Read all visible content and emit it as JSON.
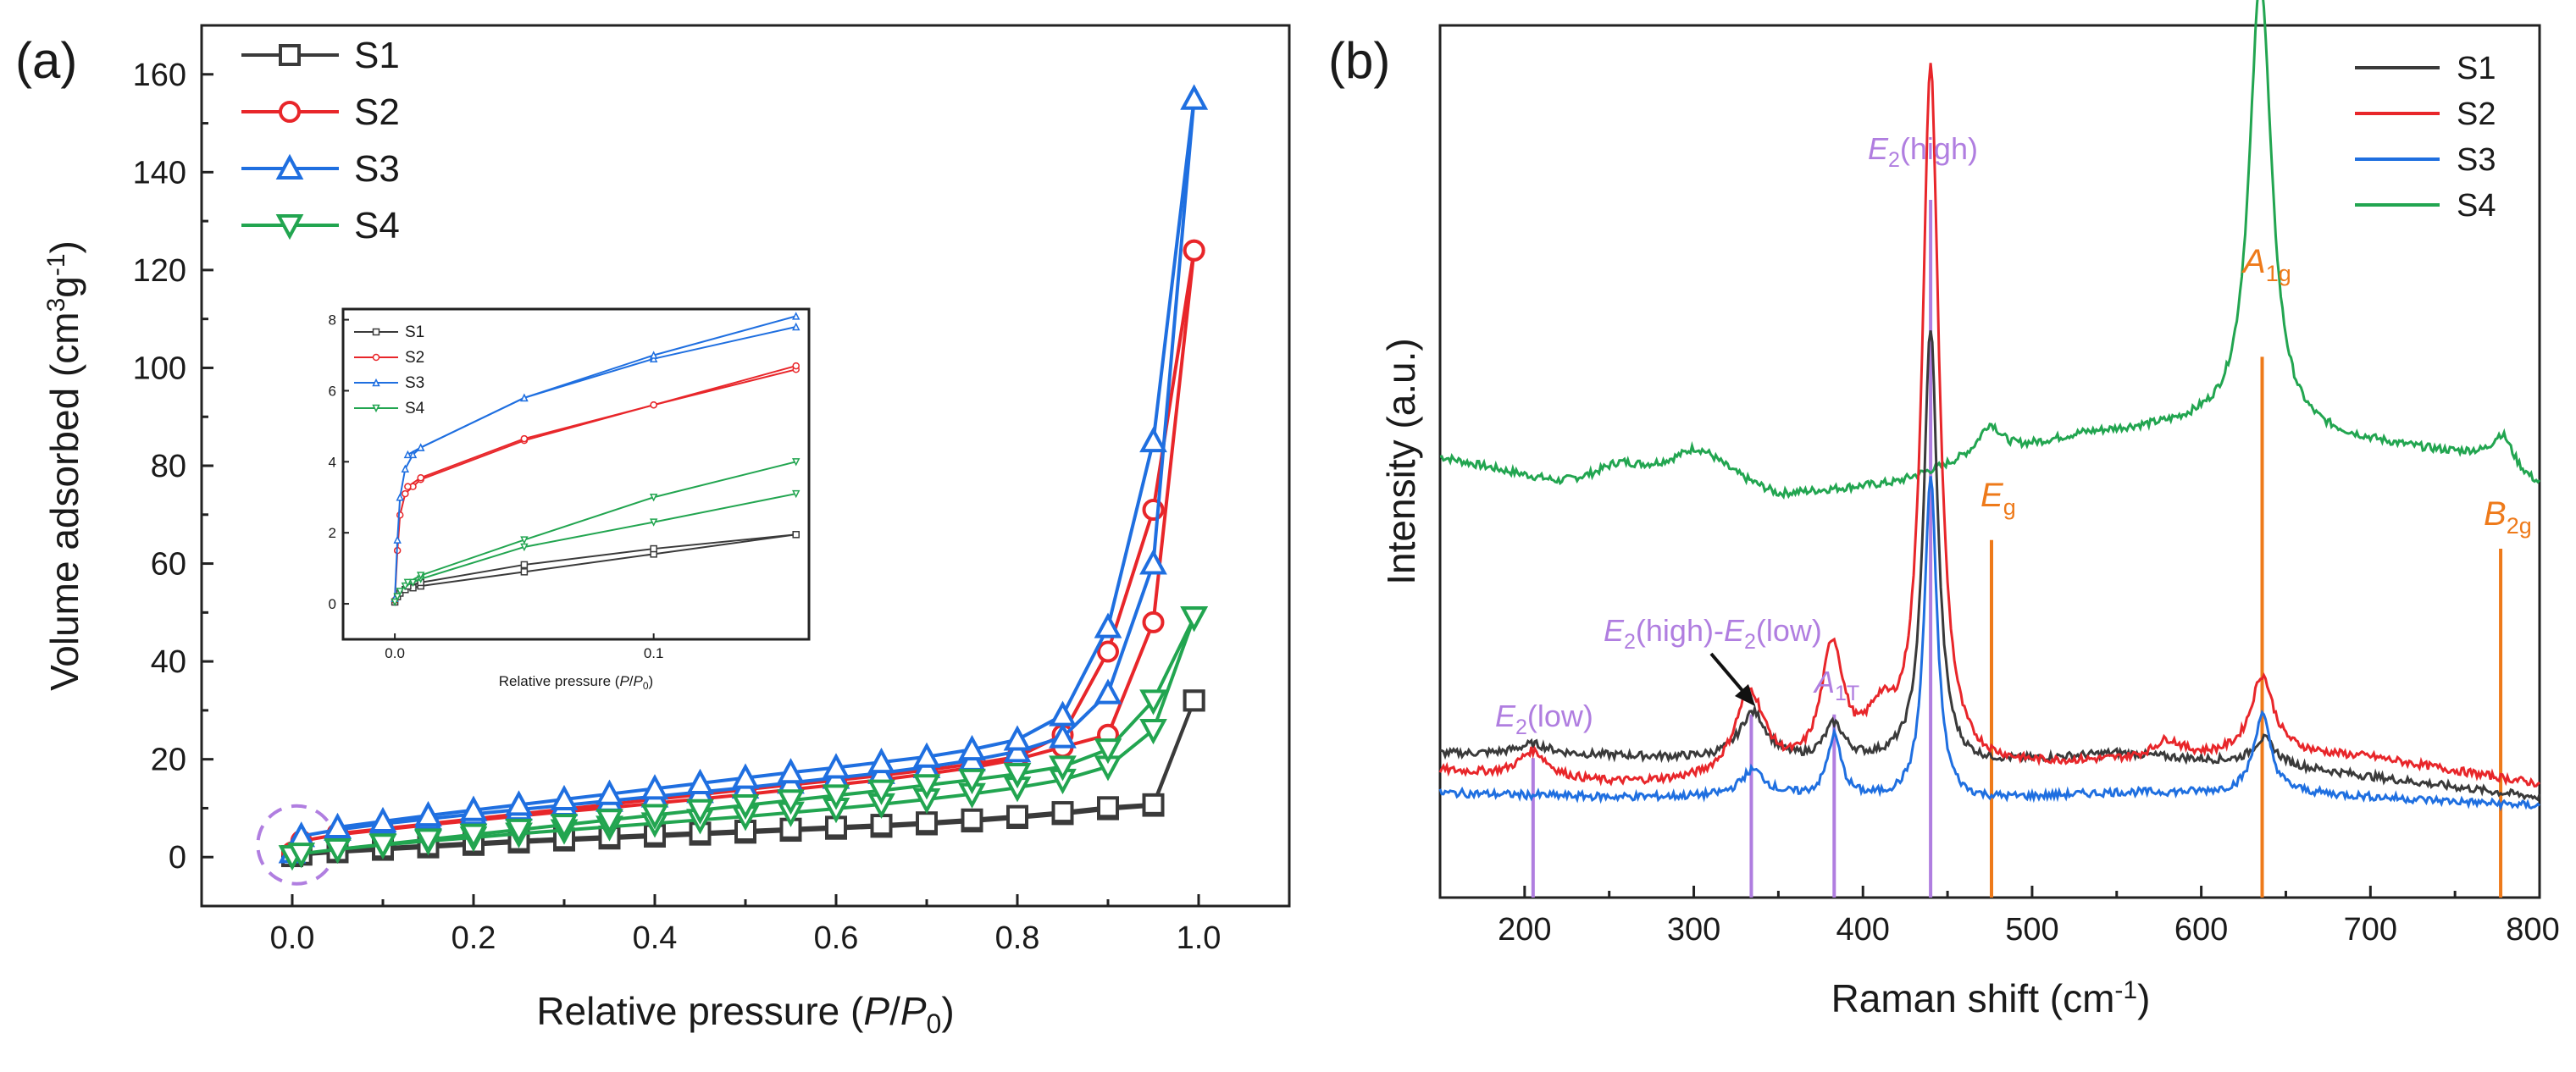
{
  "panel_labels": {
    "a": "(a)",
    "b": "(b)"
  },
  "colors": {
    "S1": "#3a3a3a",
    "S2": "#e8262a",
    "S3": "#1f6fe0",
    "S4": "#22a550",
    "axis": "#222222",
    "purple": "#b07ee0",
    "orange": "#ee7a1a",
    "circle": "#b07ee0"
  },
  "chart_data": [
    {
      "id": "a",
      "type": "line",
      "title": "",
      "xlabel": "Relative pressure (P/P0)",
      "ylabel": "Volume adsorbed (cm3g-1)",
      "xlim": [
        -0.1,
        1.1
      ],
      "ylim": [
        -10,
        170
      ],
      "xticks": [
        0.0,
        0.2,
        0.4,
        0.6,
        0.8,
        1.0
      ],
      "xtick_labels": [
        "0.0",
        "0.2",
        "0.4",
        "0.6",
        "0.8",
        "1.0"
      ],
      "yticks": [
        0,
        20,
        40,
        60,
        80,
        100,
        120,
        140,
        160
      ],
      "ytick_labels": [
        "0",
        "20",
        "40",
        "60",
        "80",
        "100",
        "120",
        "140",
        "160"
      ],
      "legend": [
        "S1",
        "S2",
        "S3",
        "S4"
      ],
      "legend_position": "top-left",
      "markers": {
        "S1": "square",
        "S2": "circle",
        "S3": "triangle-up",
        "S4": "triangle-down"
      },
      "series": [
        {
          "name": "S1",
          "ads_x": [
            0.0,
            0.01,
            0.05,
            0.1,
            0.15,
            0.2,
            0.25,
            0.3,
            0.35,
            0.4,
            0.45,
            0.5,
            0.55,
            0.6,
            0.65,
            0.7,
            0.75,
            0.8,
            0.85,
            0.9,
            0.95,
            0.995
          ],
          "ads_y": [
            0.2,
            0.5,
            1.0,
            1.5,
            2.0,
            2.5,
            3.0,
            3.4,
            3.8,
            4.2,
            4.6,
            5.0,
            5.4,
            5.8,
            6.2,
            6.7,
            7.3,
            8.0,
            8.8,
            9.8,
            10.5,
            32
          ],
          "des_x": [
            0.995,
            0.95,
            0.9,
            0.85,
            0.8,
            0.75,
            0.7,
            0.65,
            0.6,
            0.55,
            0.5,
            0.45,
            0.4,
            0.35,
            0.3,
            0.25,
            0.2,
            0.15,
            0.1,
            0.05,
            0.01
          ],
          "des_y": [
            32,
            10.8,
            10.2,
            9.2,
            8.4,
            7.7,
            7.1,
            6.6,
            6.2,
            5.8,
            5.4,
            5.0,
            4.6,
            4.2,
            3.8,
            3.4,
            2.9,
            2.4,
            1.9,
            1.2,
            0.6
          ]
        },
        {
          "name": "S2",
          "ads_x": [
            0.0,
            0.01,
            0.05,
            0.1,
            0.15,
            0.2,
            0.25,
            0.3,
            0.35,
            0.4,
            0.45,
            0.5,
            0.55,
            0.6,
            0.65,
            0.7,
            0.75,
            0.8,
            0.85,
            0.9,
            0.95,
            0.995
          ],
          "ads_y": [
            1.0,
            3.3,
            4.6,
            5.6,
            6.6,
            7.5,
            8.4,
            9.3,
            10.1,
            11.0,
            11.9,
            12.8,
            13.8,
            14.8,
            15.8,
            17.0,
            18.3,
            20.0,
            22.5,
            25.0,
            48,
            124
          ],
          "des_x": [
            0.995,
            0.95,
            0.9,
            0.85,
            0.8,
            0.75,
            0.7,
            0.65,
            0.6,
            0.55,
            0.5,
            0.45,
            0.4,
            0.35,
            0.3,
            0.25,
            0.2,
            0.15,
            0.1,
            0.05
          ],
          "des_y": [
            124,
            71,
            42,
            25,
            20.5,
            19.0,
            17.8,
            16.7,
            15.7,
            14.8,
            13.8,
            12.8,
            11.8,
            10.8,
            9.8,
            8.8,
            7.8,
            6.8,
            5.8,
            4.8
          ]
        },
        {
          "name": "S3",
          "ads_x": [
            0.0,
            0.01,
            0.05,
            0.1,
            0.15,
            0.2,
            0.25,
            0.3,
            0.35,
            0.4,
            0.45,
            0.5,
            0.55,
            0.6,
            0.65,
            0.7,
            0.75,
            0.8,
            0.85,
            0.9,
            0.95,
            0.995
          ],
          "ads_y": [
            1.0,
            4.3,
            5.6,
            6.8,
            7.8,
            8.8,
            9.7,
            10.6,
            11.5,
            12.4,
            13.3,
            14.2,
            15.2,
            16.2,
            17.2,
            18.4,
            19.8,
            21.6,
            24.5,
            33.5,
            60,
            155
          ],
          "des_x": [
            0.995,
            0.95,
            0.9,
            0.85,
            0.8,
            0.75,
            0.7,
            0.65,
            0.6,
            0.55,
            0.5,
            0.45,
            0.4,
            0.35,
            0.3,
            0.25,
            0.2,
            0.15,
            0.1,
            0.05
          ],
          "des_y": [
            155,
            85,
            47,
            29,
            24,
            22,
            20.5,
            19.4,
            18.3,
            17.3,
            16.2,
            15.1,
            14.0,
            12.9,
            11.8,
            10.7,
            9.6,
            8.5,
            7.3,
            6.1
          ]
        },
        {
          "name": "S4",
          "ads_x": [
            0.0,
            0.01,
            0.05,
            0.1,
            0.15,
            0.2,
            0.25,
            0.3,
            0.35,
            0.4,
            0.45,
            0.5,
            0.55,
            0.6,
            0.65,
            0.7,
            0.75,
            0.8,
            0.85,
            0.9,
            0.95,
            0.995
          ],
          "ads_y": [
            0.2,
            0.7,
            1.6,
            2.5,
            3.3,
            4.0,
            4.8,
            5.5,
            6.2,
            6.9,
            7.6,
            8.3,
            9.1,
            9.9,
            10.8,
            11.8,
            12.9,
            14.2,
            15.8,
            18.5,
            26,
            49
          ],
          "des_x": [
            0.995,
            0.95,
            0.9,
            0.85,
            0.8,
            0.75,
            0.7,
            0.65,
            0.6,
            0.55,
            0.5,
            0.45,
            0.4,
            0.35,
            0.3,
            0.25,
            0.2,
            0.15,
            0.1,
            0.05
          ],
          "des_y": [
            49,
            32,
            22,
            18.5,
            17.0,
            15.8,
            14.7,
            13.6,
            12.6,
            11.6,
            10.6,
            9.6,
            8.6,
            7.6,
            6.6,
            5.6,
            4.6,
            3.6,
            2.6,
            1.6
          ]
        }
      ],
      "annotation": "dashed circle around low-pressure region"
    },
    {
      "id": "a-inset",
      "type": "line",
      "xlabel": "Relative pressure (P/P0)",
      "xlim": [
        -0.02,
        0.16
      ],
      "ylim": [
        -1,
        8.3
      ],
      "xticks": [
        0.0,
        0.1
      ],
      "xtick_labels": [
        "0.0",
        "0.1"
      ],
      "yticks": [
        0,
        2,
        4,
        6,
        8
      ],
      "ytick_labels": [
        "0",
        "2",
        "4",
        "6",
        "8"
      ],
      "legend": [
        "S1",
        "S2",
        "S3",
        "S4"
      ],
      "legend_position": "top-left",
      "series": [
        {
          "name": "S1",
          "ads_x": [
            0.0,
            0.001,
            0.002,
            0.004,
            0.007,
            0.01,
            0.05,
            0.1,
            0.155
          ],
          "ads_y": [
            0.05,
            0.2,
            0.3,
            0.4,
            0.45,
            0.5,
            0.9,
            1.4,
            1.95
          ],
          "des_x": [
            0.155,
            0.1,
            0.05,
            0.01,
            0.005
          ],
          "des_y": [
            1.95,
            1.55,
            1.1,
            0.6,
            0.5
          ]
        },
        {
          "name": "S2",
          "ads_x": [
            0.0,
            0.001,
            0.002,
            0.004,
            0.007,
            0.01,
            0.05,
            0.1,
            0.155
          ],
          "ads_y": [
            0.1,
            1.5,
            2.5,
            3.1,
            3.3,
            3.5,
            4.6,
            5.6,
            6.6
          ],
          "des_x": [
            0.155,
            0.1,
            0.05,
            0.01,
            0.005
          ],
          "des_y": [
            6.7,
            5.6,
            4.65,
            3.55,
            3.3
          ]
        },
        {
          "name": "S3",
          "ads_x": [
            0.0,
            0.001,
            0.002,
            0.004,
            0.007,
            0.01,
            0.05,
            0.1,
            0.155
          ],
          "ads_y": [
            0.15,
            1.8,
            3.0,
            3.8,
            4.2,
            4.4,
            5.8,
            6.9,
            7.8
          ],
          "des_x": [
            0.155,
            0.1,
            0.05,
            0.01,
            0.005
          ],
          "des_y": [
            8.1,
            7.0,
            5.8,
            4.4,
            4.2
          ]
        },
        {
          "name": "S4",
          "ads_x": [
            0.0,
            0.001,
            0.002,
            0.004,
            0.007,
            0.01,
            0.05,
            0.1,
            0.155
          ],
          "ads_y": [
            0.05,
            0.2,
            0.35,
            0.5,
            0.6,
            0.7,
            1.6,
            2.3,
            3.1
          ],
          "des_x": [
            0.155,
            0.1,
            0.05,
            0.01,
            0.005
          ],
          "des_y": [
            4.0,
            3.0,
            1.8,
            0.8,
            0.6
          ]
        }
      ]
    },
    {
      "id": "b",
      "type": "line",
      "xlabel": "Raman shift (cm-1)",
      "ylabel": "Intensity (a.u.)",
      "xlim": [
        150,
        800
      ],
      "ylim": [
        0,
        100
      ],
      "xticks": [
        200,
        300,
        400,
        500,
        600,
        700,
        800
      ],
      "xtick_labels": [
        "200",
        "300",
        "400",
        "500",
        "600",
        "700",
        "800"
      ],
      "legend": [
        "S1",
        "S2",
        "S3",
        "S4"
      ],
      "legend_position": "top-right",
      "series": [
        {
          "name": "S1",
          "baseline": [
            [
              150,
              16.5
            ],
            [
              250,
              16.2
            ],
            [
              350,
              15.5
            ],
            [
              420,
              15.5
            ],
            [
              460,
              15.0
            ],
            [
              550,
              16.5
            ],
            [
              650,
              15.0
            ],
            [
              800,
              11.5
            ]
          ],
          "peaks": [
            [
              205,
              1.2,
              12
            ],
            [
              335,
              5.5,
              10
            ],
            [
              383,
              4,
              7
            ],
            [
              440,
              50,
              5
            ],
            [
              637,
              3,
              8
            ]
          ]
        },
        {
          "name": "S2",
          "baseline": [
            [
              150,
              14.5
            ],
            [
              250,
              13.0
            ],
            [
              320,
              13.0
            ],
            [
              420,
              14.5
            ],
            [
              460,
              14.5
            ],
            [
              550,
              15.5
            ],
            [
              650,
              16.5
            ],
            [
              700,
              16.0
            ],
            [
              800,
              13.0
            ]
          ],
          "peaks": [
            [
              205,
              3,
              10
            ],
            [
              333,
              10,
              11
            ],
            [
              382,
              14,
              8
            ],
            [
              410,
              5,
              10
            ],
            [
              440,
              80,
              6
            ],
            [
              580,
              2,
              10
            ],
            [
              636,
              9,
              8
            ]
          ]
        },
        {
          "name": "S3",
          "baseline": [
            [
              150,
              12.0
            ],
            [
              250,
              11.5
            ],
            [
              350,
              11.5
            ],
            [
              460,
              11.0
            ],
            [
              550,
              12.0
            ],
            [
              650,
              12.0
            ],
            [
              800,
              10.5
            ]
          ],
          "peaks": [
            [
              335,
              3,
              9
            ],
            [
              383,
              7,
              5
            ],
            [
              440,
              37,
              4.5
            ],
            [
              636,
              9,
              6
            ]
          ]
        },
        {
          "name": "S4",
          "baseline": [
            [
              150,
              50.5
            ],
            [
              220,
              47.5
            ],
            [
              250,
              48.0
            ],
            [
              300,
              49.5
            ],
            [
              350,
              46.0
            ],
            [
              420,
              47.5
            ],
            [
              460,
              50.0
            ],
            [
              530,
              53.0
            ],
            [
              560,
              53.5
            ],
            [
              600,
              54.0
            ],
            [
              700,
              52.0
            ],
            [
              760,
              50.5
            ],
            [
              800,
              47.0
            ]
          ],
          "peaks": [
            [
              255,
              1.5,
              14
            ],
            [
              305,
              2,
              18
            ],
            [
              475,
              3.5,
              8
            ],
            [
              635,
              52,
              8
            ],
            [
              778,
              4,
              8
            ]
          ]
        }
      ],
      "vlines": [
        {
          "x": 205,
          "color": "purple",
          "top": 16
        },
        {
          "x": 334,
          "color": "purple",
          "top": 21
        },
        {
          "x": 383,
          "color": "purple",
          "top": 21
        },
        {
          "x": 440,
          "color": "purple",
          "top": 80
        },
        {
          "x": 476,
          "color": "orange",
          "top": 41
        },
        {
          "x": 636,
          "color": "orange",
          "top": 62
        },
        {
          "x": 777,
          "color": "orange",
          "top": 40
        }
      ]
    }
  ],
  "labels_b": {
    "E2_low": {
      "main": "E",
      "sub": "2",
      "rest": "(low)"
    },
    "E2_high_low": {
      "main": "E",
      "sub": "2",
      "rest": "(high)-",
      "main2": "E",
      "sub2": "2",
      "rest2": "(low)"
    },
    "A1T": {
      "main": "A",
      "sub": "1T"
    },
    "E2_high": {
      "main": "E",
      "sub": "2",
      "rest": "(high)"
    },
    "Eg": {
      "main": "E",
      "sub": "g"
    },
    "A1g": {
      "main": "A",
      "sub": "1g"
    },
    "B2g": {
      "main": "B",
      "sub": "2g"
    }
  },
  "axis_texts": {
    "a_xlabel": {
      "pre": "Relative pressure (",
      "p": "P",
      "slash": "/",
      "p0": "P",
      "zero": "0",
      "post": ")"
    },
    "a_ylabel": {
      "pre": "Volume adsorbed (cm",
      "sup1": "3",
      "mid": "g",
      "sup2": "-1",
      "post": ")"
    },
    "b_xlabel": {
      "pre": "Raman shift (cm",
      "sup": "-1",
      "post": ")"
    },
    "b_ylabel": "Intensity (a.u.)",
    "inset_xlabel": {
      "pre": "Relative pressure (",
      "p": "P",
      "slash": "/",
      "p0": "P",
      "zero": "0",
      "post": ")"
    }
  }
}
